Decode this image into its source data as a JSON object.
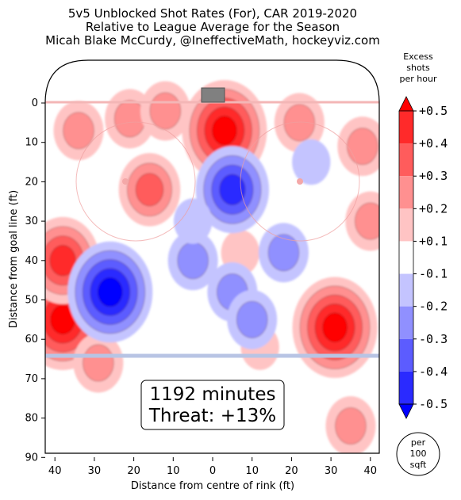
{
  "chart_data": {
    "type": "heatmap",
    "title_lines": [
      "5v5 Unblocked Shot Rates (For), CAR 2019-2020",
      "Relative to League Average for the Season",
      "Micah Blake McCurdy, @IneffectiveMath, hockeyviz.com"
    ],
    "xlabel": "Distance from centre of rink (ft)",
    "ylabel": "Distance from goal line (ft)",
    "x_ticks": [
      "40",
      "30",
      "20",
      "10",
      "0",
      "10",
      "20",
      "30",
      "40"
    ],
    "y_ticks": [
      "0",
      "10",
      "20",
      "30",
      "40",
      "50",
      "60",
      "70",
      "80",
      "90"
    ],
    "xlim": [
      -42.5,
      42.5
    ],
    "ylim": [
      -11,
      90
    ],
    "colorbar": {
      "title_lines": [
        "Excess",
        "shots",
        "per hour"
      ],
      "tick_labels": [
        "+0.5",
        "+0.4",
        "+0.3",
        "+0.2",
        "+0.1",
        "-0.1",
        "-0.2",
        "-0.3",
        "-0.4",
        "-0.5"
      ],
      "levels": [
        0.5,
        0.4,
        0.3,
        0.2,
        0.1,
        -0.1,
        -0.2,
        -0.3,
        -0.4,
        -0.5
      ],
      "colors": [
        "#ff0000",
        "#ff2a2a",
        "#ff5c5c",
        "#ff9090",
        "#ffc4c4",
        "#ffffff",
        "#c4c4ff",
        "#9090ff",
        "#5c5cff",
        "#2a2aff",
        "#0000ff"
      ]
    },
    "unit_label_lines": [
      "per",
      "100",
      "sqft"
    ],
    "annotation_lines": [
      "1192 minutes",
      "Threat: +13%"
    ],
    "hotspots": [
      {
        "x": 3,
        "y": 7,
        "value": 0.5
      },
      {
        "x": 31,
        "y": 57,
        "value": 0.5
      },
      {
        "x": -38,
        "y": 55,
        "value": 0.5
      },
      {
        "x": -38,
        "y": 40,
        "value": 0.4
      },
      {
        "x": -16,
        "y": 22,
        "value": 0.3
      },
      {
        "x": -34,
        "y": 7,
        "value": 0.2
      },
      {
        "x": -21,
        "y": 4,
        "value": 0.2
      },
      {
        "x": -12,
        "y": 2,
        "value": 0.2
      },
      {
        "x": 22,
        "y": 5,
        "value": 0.2
      },
      {
        "x": 38,
        "y": 11,
        "value": 0.2
      },
      {
        "x": 40,
        "y": 30,
        "value": 0.2
      },
      {
        "x": 35,
        "y": 82,
        "value": 0.2
      },
      {
        "x": -29,
        "y": 66,
        "value": 0.2
      },
      {
        "x": 12,
        "y": 62,
        "value": 0.1
      },
      {
        "x": 7,
        "y": 38,
        "value": 0.1
      },
      {
        "x": -26,
        "y": 48,
        "value": -0.5
      },
      {
        "x": 5,
        "y": 22,
        "value": -0.4
      },
      {
        "x": 5,
        "y": 48,
        "value": -0.2
      },
      {
        "x": -5,
        "y": 40,
        "value": -0.2
      },
      {
        "x": 18,
        "y": 38,
        "value": -0.2
      },
      {
        "x": 10,
        "y": 55,
        "value": -0.2
      },
      {
        "x": 25,
        "y": 15,
        "value": -0.1
      },
      {
        "x": -5,
        "y": 30,
        "value": -0.1
      }
    ]
  }
}
